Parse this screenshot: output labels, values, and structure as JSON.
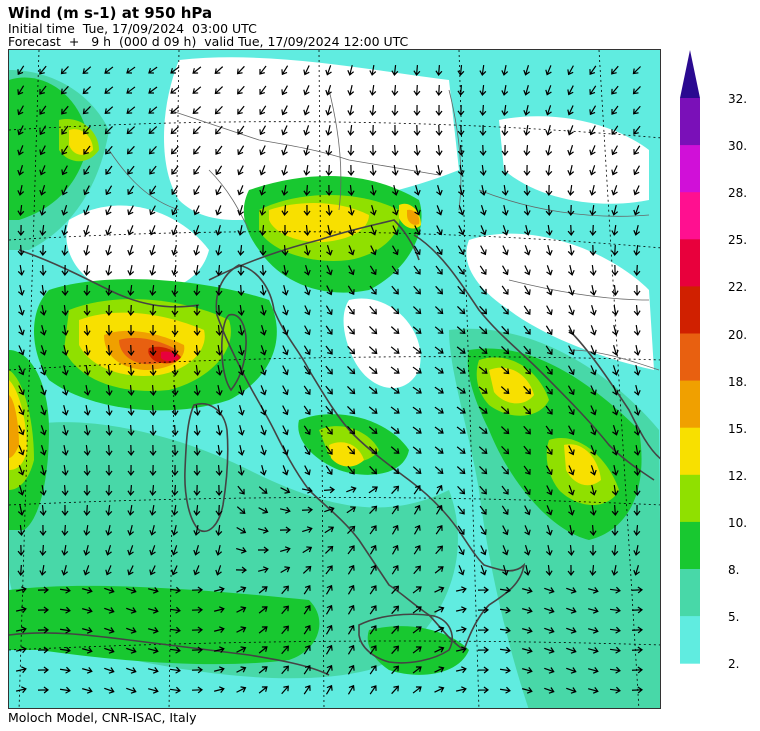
{
  "header": {
    "title": "Wind (m s-1) at 950 hPa",
    "initial_time": "Initial time  Tue, 17/09/2024  03:00 UTC",
    "forecast": "Forecast  +   9 h  (000 d 09 h)  valid Tue, 17/09/2024 12:00 UTC"
  },
  "footer": {
    "credit": "Moloch Model, CNR-ISAC, Italy"
  },
  "map": {
    "land_outline_color": "#444444",
    "border_color": "#666666",
    "graticule_color": "#000000",
    "arrow_color": "#000000"
  },
  "legend": {
    "labels": [
      "32.",
      "30.",
      "28.",
      "25.",
      "22.",
      "20.",
      "18.",
      "15.",
      "12.",
      "10.",
      "8.",
      "5.",
      "2."
    ],
    "colors": [
      "#7a10b8",
      "#d010d8",
      "#ff1090",
      "#e8003c",
      "#d02000",
      "#e86010",
      "#f0a000",
      "#f8e000",
      "#90e000",
      "#18c830",
      "#48d8a8",
      "#60ece0",
      "#ffffff"
    ],
    "bands": [
      {
        "color": "#7a10b8"
      },
      {
        "color": "#d010d8"
      },
      {
        "color": "#ff1090"
      },
      {
        "color": "#e8003c"
      },
      {
        "color": "#d02000"
      },
      {
        "color": "#e86010"
      },
      {
        "color": "#f0a000"
      },
      {
        "color": "#f8e000"
      },
      {
        "color": "#90e000"
      },
      {
        "color": "#18c830"
      },
      {
        "color": "#48d8a8"
      },
      {
        "color": "#60ece0"
      }
    ],
    "arrow_color": "#2a0a90"
  }
}
